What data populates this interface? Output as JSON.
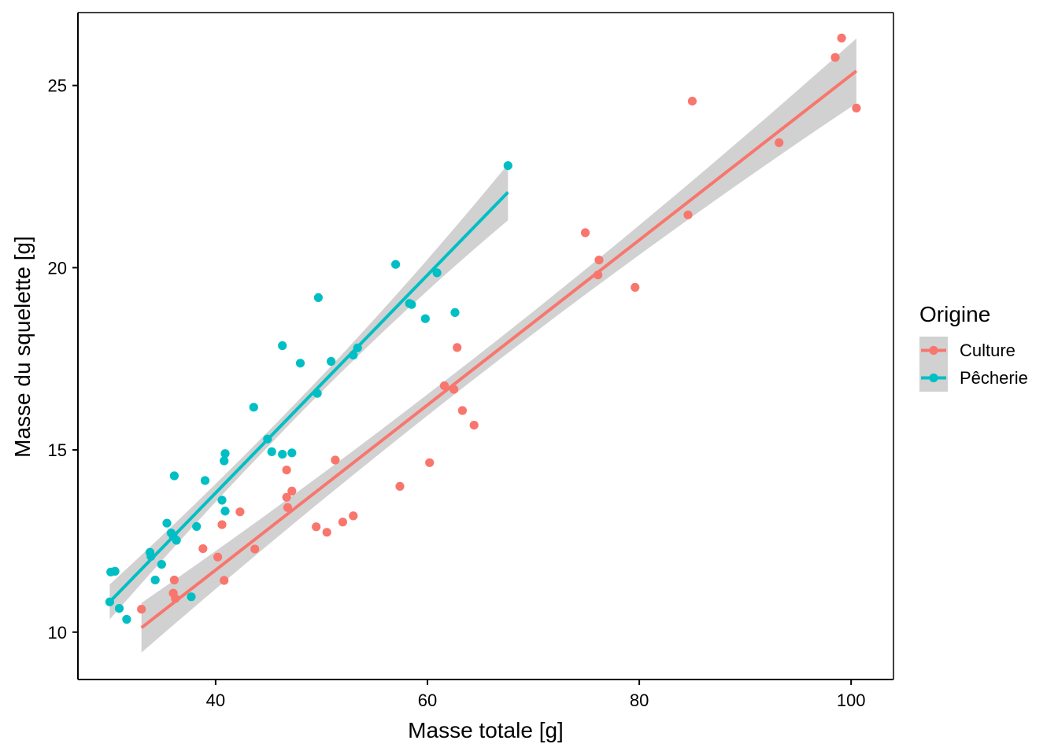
{
  "chart_data": {
    "type": "scatter",
    "xlabel": "Masse totale  [g]",
    "ylabel": "Masse du squelette  [g]",
    "xlim": [
      27,
      104
    ],
    "ylim": [
      8.7,
      27.0
    ],
    "x_ticks": [
      40,
      60,
      80,
      100
    ],
    "y_ticks": [
      10,
      15,
      20,
      25
    ],
    "grid": false,
    "legend": {
      "title": "Origine",
      "placement": "right"
    },
    "series": [
      {
        "name": "Culture",
        "color": "#F8766D",
        "points": [
          [
            33.0,
            10.63
          ],
          [
            36.0,
            11.07
          ],
          [
            36.1,
            11.43
          ],
          [
            36.2,
            10.92
          ],
          [
            38.8,
            12.29
          ],
          [
            40.2,
            12.06
          ],
          [
            40.6,
            12.95
          ],
          [
            40.8,
            11.42
          ],
          [
            42.3,
            13.3
          ],
          [
            43.7,
            12.28
          ],
          [
            46.7,
            14.45
          ],
          [
            46.7,
            13.7
          ],
          [
            46.8,
            13.42
          ],
          [
            47.2,
            13.87
          ],
          [
            49.5,
            12.89
          ],
          [
            50.5,
            12.74
          ],
          [
            51.3,
            14.72
          ],
          [
            52.0,
            13.02
          ],
          [
            53.0,
            13.19
          ],
          [
            57.4,
            14.0
          ],
          [
            60.2,
            14.65
          ],
          [
            61.6,
            16.76
          ],
          [
            62.5,
            16.66
          ],
          [
            62.8,
            17.81
          ],
          [
            63.3,
            16.08
          ],
          [
            64.4,
            15.68
          ],
          [
            74.9,
            20.96
          ],
          [
            76.1,
            19.8
          ],
          [
            76.2,
            20.21
          ],
          [
            79.6,
            19.46
          ],
          [
            84.6,
            21.45
          ],
          [
            85.0,
            24.57
          ],
          [
            93.2,
            23.43
          ],
          [
            98.5,
            25.77
          ],
          [
            99.1,
            26.3
          ],
          [
            100.5,
            24.38
          ]
        ],
        "fit": {
          "x": [
            33.0,
            100.5
          ],
          "y": [
            10.12,
            25.4
          ],
          "ci_lower": [
            9.44,
            24.5
          ],
          "ci_upper": [
            10.8,
            26.28
          ]
        }
      },
      {
        "name": "Pêcherie",
        "color": "#00BFC4",
        "points": [
          [
            30.0,
            10.83
          ],
          [
            30.1,
            11.65
          ],
          [
            30.5,
            11.67
          ],
          [
            30.9,
            10.65
          ],
          [
            31.6,
            10.35
          ],
          [
            33.8,
            12.19
          ],
          [
            33.9,
            12.08
          ],
          [
            34.3,
            11.43
          ],
          [
            34.9,
            11.86
          ],
          [
            35.4,
            12.99
          ],
          [
            35.8,
            12.72
          ],
          [
            36.0,
            12.63
          ],
          [
            36.1,
            14.29
          ],
          [
            36.3,
            12.52
          ],
          [
            37.7,
            10.97
          ],
          [
            38.2,
            12.9
          ],
          [
            39.0,
            14.16
          ],
          [
            40.6,
            13.62
          ],
          [
            40.8,
            14.7
          ],
          [
            40.9,
            13.32
          ],
          [
            40.9,
            14.9
          ],
          [
            43.6,
            16.17
          ],
          [
            44.9,
            15.3
          ],
          [
            45.3,
            14.95
          ],
          [
            46.3,
            14.88
          ],
          [
            46.3,
            17.86
          ],
          [
            47.2,
            14.92
          ],
          [
            48.0,
            17.38
          ],
          [
            49.6,
            16.55
          ],
          [
            49.7,
            19.18
          ],
          [
            50.9,
            17.43
          ],
          [
            53.0,
            17.6
          ],
          [
            53.4,
            17.8
          ],
          [
            57.0,
            20.09
          ],
          [
            58.3,
            19.02
          ],
          [
            58.5,
            18.99
          ],
          [
            59.8,
            18.6
          ],
          [
            60.9,
            19.86
          ],
          [
            62.6,
            18.77
          ],
          [
            67.6,
            22.8
          ]
        ],
        "fit": {
          "x": [
            30.0,
            67.6
          ],
          "y": [
            10.83,
            22.07
          ],
          "ci_lower": [
            10.35,
            21.3
          ],
          "ci_upper": [
            11.31,
            22.84
          ]
        }
      }
    ]
  }
}
